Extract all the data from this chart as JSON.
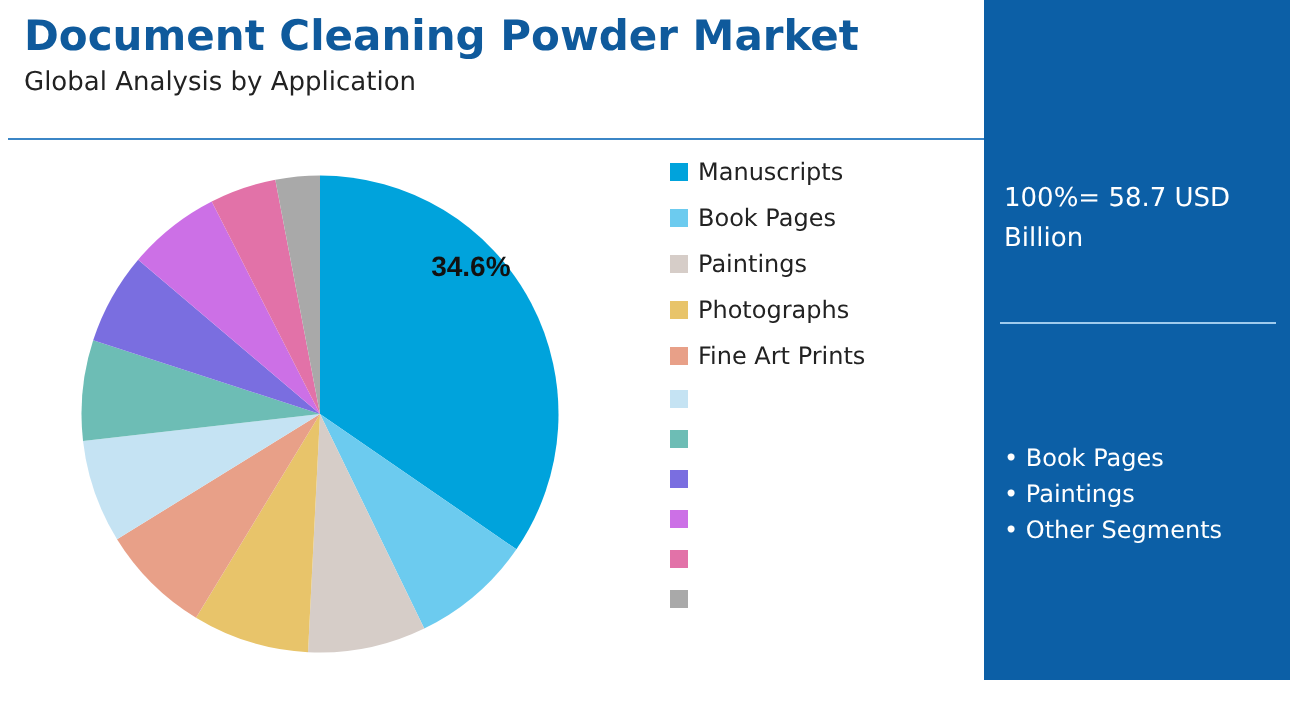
{
  "chart_data": {
    "type": "pie",
    "title": "Document Cleaning Powder Market",
    "subtitle": "Global Analysis by Application",
    "categories": [
      "Manuscripts",
      "Book Pages",
      "Paintings",
      "Photographs",
      "Fine Art Prints",
      null,
      null,
      null,
      null,
      null,
      null
    ],
    "values": [
      34.6,
      8.2,
      8.0,
      7.9,
      7.5,
      7.0,
      6.8,
      6.2,
      6.3,
      4.5,
      3.0
    ],
    "colors": [
      "#00a3dc",
      "#6ccbef",
      "#d6cdc8",
      "#e8c46a",
      "#e8a088",
      "#c5e3f3",
      "#6dbdb5",
      "#7a6ee0",
      "#cc70e6",
      "#e272a8",
      "#a9a9a9"
    ],
    "value_labels": [
      "34.6%",
      null,
      null,
      null,
      null,
      null,
      null,
      null,
      null,
      null,
      null
    ],
    "legend": "right",
    "annotations": [
      "100%= 58.7 USD Billion",
      "• Book Pages",
      "• Paintings",
      "• Other Segments"
    ]
  }
}
